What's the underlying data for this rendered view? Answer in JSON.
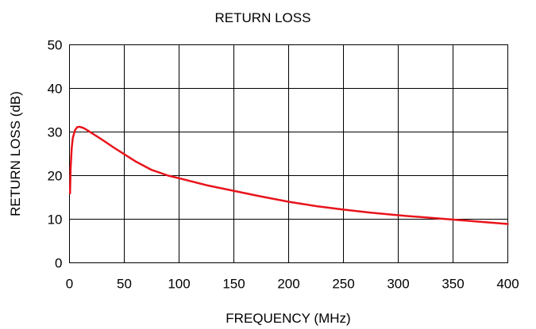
{
  "chart_data": {
    "type": "line",
    "title": "RETURN LOSS",
    "xlabel": "FREQUENCY (MHz)",
    "ylabel": "RETURN LOSS (dB)",
    "xlim": [
      0,
      400
    ],
    "ylim": [
      0,
      50
    ],
    "x_ticks": [
      "0",
      "50",
      "100",
      "150",
      "200",
      "250",
      "300",
      "350",
      "400"
    ],
    "y_ticks": [
      "0",
      "10",
      "20",
      "30",
      "40",
      "50"
    ],
    "grid": true,
    "legend": "none",
    "series": [
      {
        "color": "#e8141b",
        "x": [
          0.5,
          1,
          2,
          3,
          5,
          7,
          9,
          12,
          15,
          20,
          30,
          40,
          50,
          60,
          75,
          90,
          100,
          125,
          150,
          175,
          200,
          225,
          250,
          275,
          300,
          325,
          350,
          375,
          400
        ],
        "y": [
          15.9,
          21.5,
          26.2,
          28.6,
          30.4,
          31.1,
          31.2,
          31.0,
          30.6,
          29.8,
          28.2,
          26.5,
          24.9,
          23.3,
          21.3,
          20.0,
          19.4,
          17.8,
          16.5,
          15.2,
          14.0,
          13.0,
          12.2,
          11.5,
          10.9,
          10.4,
          9.9,
          9.4,
          8.9
        ]
      }
    ]
  }
}
